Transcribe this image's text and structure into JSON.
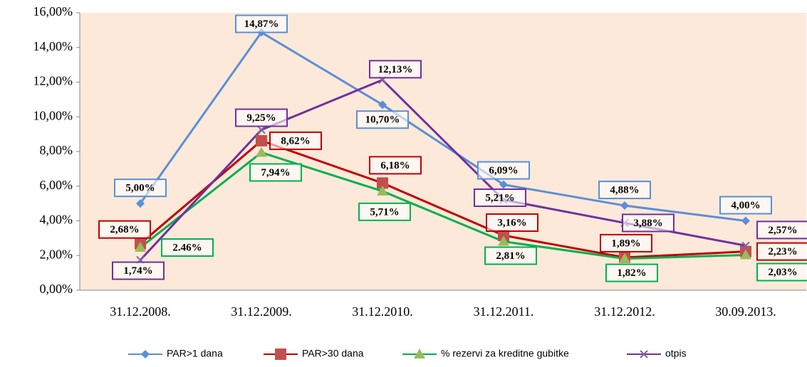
{
  "chart_data": {
    "type": "line",
    "categories": [
      "31.12.2008.",
      "31.12.2009.",
      "31.12.2010.",
      "31.12.2011.",
      "31.12.2012.",
      "30.09.2013."
    ],
    "series": [
      {
        "name": "PAR>1 dana",
        "color": "#5b8fd6",
        "marker": "diamond",
        "values": [
          5.0,
          14.87,
          10.7,
          6.09,
          4.88,
          4.0
        ],
        "value_labels": [
          "5,00%",
          "14,87%",
          "10,70%",
          "6,09%",
          "4,88%",
          "4,00%"
        ]
      },
      {
        "name": "PAR>30 dana",
        "color": "#c00000",
        "marker": "square",
        "values": [
          2.68,
          8.62,
          6.18,
          3.16,
          1.89,
          2.23
        ],
        "value_labels": [
          "2,68%",
          "8,62%",
          "6,18%",
          "3,16%",
          "1,89%",
          "2,23%"
        ]
      },
      {
        "name": "% rezervi za kreditne gubitke",
        "color": "#00b050",
        "marker": "triangle",
        "values": [
          2.46,
          7.94,
          5.71,
          2.81,
          1.82,
          2.03
        ],
        "value_labels": [
          "2.46%",
          "7,94%",
          "5,71%",
          "2,81%",
          "1,82%",
          "2,03%"
        ]
      },
      {
        "name": "otpis",
        "color": "#7030a0",
        "marker": "x",
        "values": [
          1.74,
          9.25,
          12.13,
          5.21,
          3.88,
          2.57
        ],
        "value_labels": [
          "1,74%",
          "9,25%",
          "12,13%",
          "5,21%",
          "3,88%",
          "2,57%"
        ]
      }
    ],
    "ylim": [
      0,
      16
    ],
    "yticks": [
      {
        "value": 0,
        "label": "0,00%"
      },
      {
        "value": 2,
        "label": "2,00%"
      },
      {
        "value": 4,
        "label": "4,00%"
      },
      {
        "value": 6,
        "label": "6,00%"
      },
      {
        "value": 8,
        "label": "8,00%"
      },
      {
        "value": 10,
        "label": "10,00%"
      },
      {
        "value": 12,
        "label": "12,00%"
      },
      {
        "value": 14,
        "label": "14,00%"
      },
      {
        "value": 16,
        "label": "16,00%"
      }
    ],
    "legend": "bottom"
  }
}
